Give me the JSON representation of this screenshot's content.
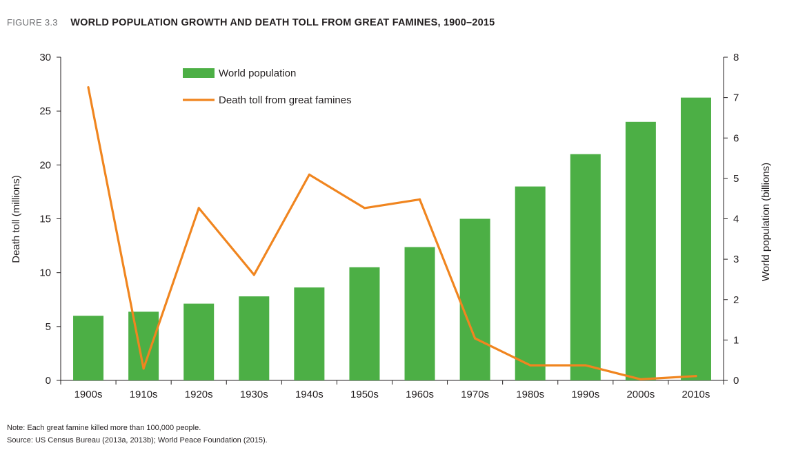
{
  "figure": {
    "label": "FIGURE 3.3",
    "title": "WORLD POPULATION GROWTH AND DEATH TOLL FROM GREAT FAMINES, 1900–2015"
  },
  "notes": {
    "note": "Note: Each great famine killed more than 100,000 people.",
    "source": "Source: US Census Bureau (2013a, 2013b); World Peace Foundation (2015)."
  },
  "colors": {
    "bar": "#4caf45",
    "line": "#f0851f",
    "axis": "#231f20"
  },
  "chart_data": {
    "type": "bar+line",
    "title": "WORLD POPULATION GROWTH AND DEATH TOLL FROM GREAT FAMINES, 1900–2015",
    "categories": [
      "1900s",
      "1910s",
      "1920s",
      "1930s",
      "1940s",
      "1950s",
      "1960s",
      "1970s",
      "1980s",
      "1990s",
      "2000s",
      "2010s"
    ],
    "y_left": {
      "label": "Death toll (millions)",
      "range": [
        0,
        30
      ],
      "ticks": [
        0,
        5,
        10,
        15,
        20,
        25,
        30
      ]
    },
    "y_right": {
      "label": "World population (billions)",
      "range": [
        0,
        8
      ],
      "ticks": [
        0,
        1,
        2,
        3,
        4,
        5,
        6,
        7,
        8
      ]
    },
    "grid": false,
    "legend_position": "top-left",
    "series": [
      {
        "name": "World population",
        "type": "bar",
        "axis": "right",
        "values": [
          1.6,
          1.7,
          1.9,
          2.08,
          2.3,
          2.8,
          3.3,
          4.0,
          4.8,
          5.6,
          6.4,
          7.0
        ]
      },
      {
        "name": "Death toll from great famines",
        "type": "line",
        "axis": "left",
        "values": [
          27.2,
          1.1,
          16.0,
          9.8,
          19.1,
          16.0,
          16.8,
          3.9,
          1.4,
          1.4,
          0.1,
          0.4
        ]
      }
    ]
  }
}
